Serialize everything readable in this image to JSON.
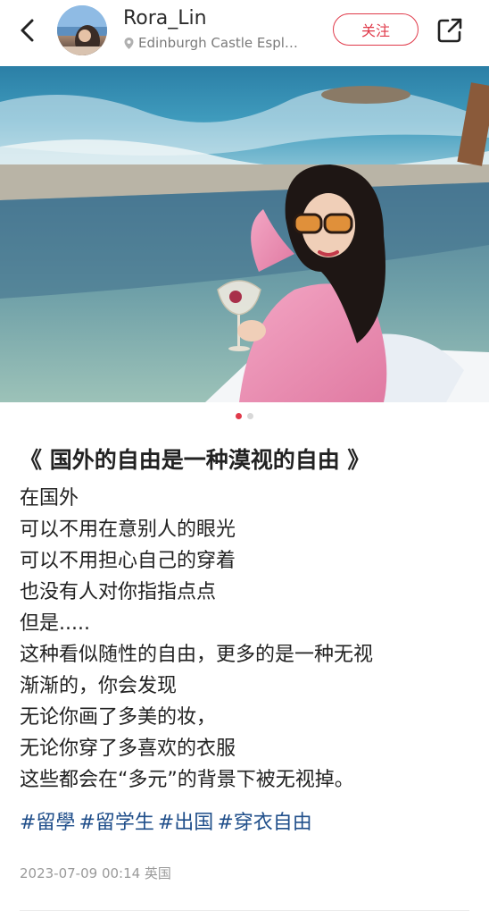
{
  "header": {
    "username": "Rora_Lin",
    "location": "Edinburgh Castle Espl…",
    "follow_label": "关注"
  },
  "carousel": {
    "count": 2,
    "active": 1
  },
  "post": {
    "title": "《 国外的自由是一种漠视的自由 》",
    "lines": [
      "在国外",
      "可以不用在意别人的眼光",
      "可以不用担心自己的穿着",
      "也没有人对你指指点点",
      "但是.....",
      "这种看似随性的自由，更多的是一种无视",
      "渐渐的，你会发现",
      "无论你画了多美的妆，",
      "无论你穿了多喜欢的衣服",
      "这些都会在“多元”的背景下被无视掉。"
    ],
    "tags": [
      "#留學",
      "#留学生",
      "#出国",
      "#穿衣自由"
    ],
    "meta": "2023-07-09 00:14 英国"
  },
  "colors": {
    "accent": "#e03a4a",
    "tag": "#1f4e8a"
  }
}
